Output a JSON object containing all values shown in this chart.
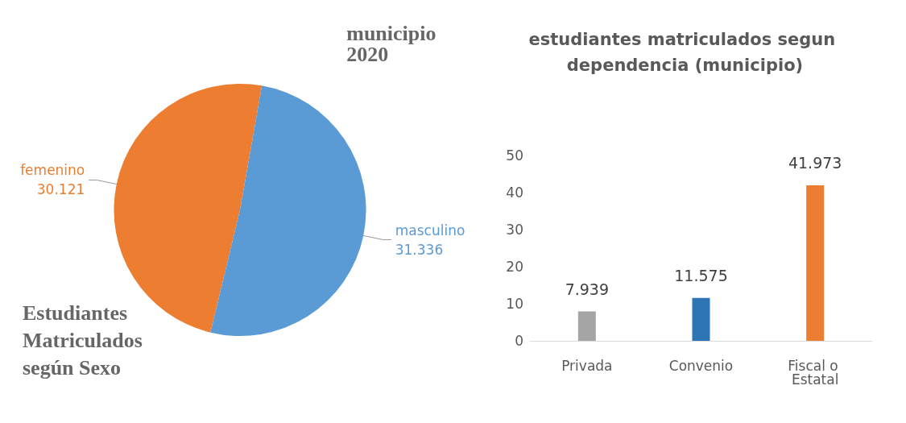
{
  "chart_data": [
    {
      "type": "pie",
      "title": "municipio 2020",
      "annotations": [
        "Estudiantes Matriculados según Sexo"
      ],
      "categories": [
        "femenino",
        "masculino"
      ],
      "values": [
        30.121,
        31.336
      ],
      "colors": [
        "#ed7d31",
        "#5b9bd5"
      ],
      "data_labels": true,
      "legend": false
    },
    {
      "type": "bar",
      "title": "estudiantes matriculados segun dependencia (municipio)",
      "categories": [
        "Privada",
        "Convenio",
        "Fiscal o Estatal"
      ],
      "values": [
        7.939,
        11.575,
        41.973
      ],
      "colors": [
        "#a5a5a5",
        "#2e75b6",
        "#ed7d31"
      ],
      "ylim": [
        0,
        50
      ],
      "yticks": [
        0,
        10,
        20,
        30,
        40,
        50
      ],
      "grid": false,
      "legend": false,
      "data_labels": true
    }
  ]
}
